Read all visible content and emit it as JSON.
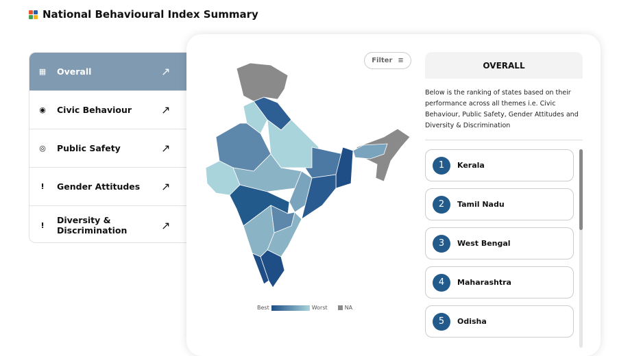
{
  "header": {
    "title": "National Behavioural Index Summary"
  },
  "sidebar": {
    "items": [
      {
        "label": "Overall",
        "icon": "grid-icon",
        "active": true
      },
      {
        "label": "Civic Behaviour",
        "icon": "head-icon"
      },
      {
        "label": "Public Safety",
        "icon": "shield-user-icon"
      },
      {
        "label": "Gender Attitudes",
        "icon": "people-icon"
      },
      {
        "label": "Diversity & Discrimination",
        "icon": "group-icon"
      }
    ],
    "arrow": "↗"
  },
  "map": {
    "filter_label": "Filter",
    "legend": {
      "best": "Best",
      "worst": "Worst",
      "na": "NA"
    },
    "colors": {
      "best": "#1f4e86",
      "worst": "#a9d4db",
      "na": "#8a8a8a"
    }
  },
  "panel": {
    "heading": "OVERALL",
    "description": "Below is the ranking of states based on their performance across all themes i.e. Civic Behaviour, Public Safety, Gender Attitudes and Diversity & Discrimination",
    "ranks": [
      {
        "n": "1",
        "state": "Kerala"
      },
      {
        "n": "2",
        "state": "Tamil Nadu"
      },
      {
        "n": "3",
        "state": "West Bengal"
      },
      {
        "n": "4",
        "state": "Maharashtra"
      },
      {
        "n": "5",
        "state": "Odisha"
      }
    ]
  }
}
